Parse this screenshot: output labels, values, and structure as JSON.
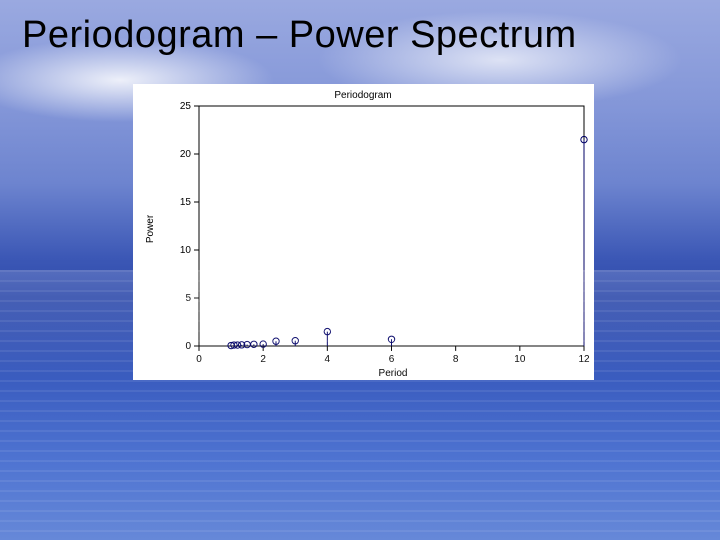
{
  "slide": {
    "title": "Periodogram – Power Spectrum"
  },
  "chart": {
    "type": "stem",
    "title": "Periodogram",
    "title_fontsize": 10,
    "xlabel": "Period",
    "ylabel": "Power",
    "label_fontsize": 10,
    "tick_fontsize": 10,
    "background_color": "#ffffff",
    "stem_color": "#000066",
    "marker": "circle",
    "marker_size": 3.2,
    "marker_edge_color": "#000066",
    "marker_fill": "none",
    "xlim": [
      0,
      12
    ],
    "ylim": [
      0,
      25
    ],
    "x_ticks": [
      0,
      2,
      4,
      6,
      8,
      10,
      12
    ],
    "y_ticks": [
      0,
      5,
      10,
      15,
      20,
      25
    ],
    "grid": false,
    "points": [
      {
        "x": 1.0,
        "y": 0.05
      },
      {
        "x": 1.09,
        "y": 0.1
      },
      {
        "x": 1.2,
        "y": 0.1
      },
      {
        "x": 1.33,
        "y": 0.12
      },
      {
        "x": 1.5,
        "y": 0.15
      },
      {
        "x": 1.71,
        "y": 0.18
      },
      {
        "x": 2.0,
        "y": 0.2
      },
      {
        "x": 2.4,
        "y": 0.5
      },
      {
        "x": 3.0,
        "y": 0.55
      },
      {
        "x": 4.0,
        "y": 1.5
      },
      {
        "x": 6.0,
        "y": 0.7
      },
      {
        "x": 12.0,
        "y": 21.5
      }
    ]
  }
}
